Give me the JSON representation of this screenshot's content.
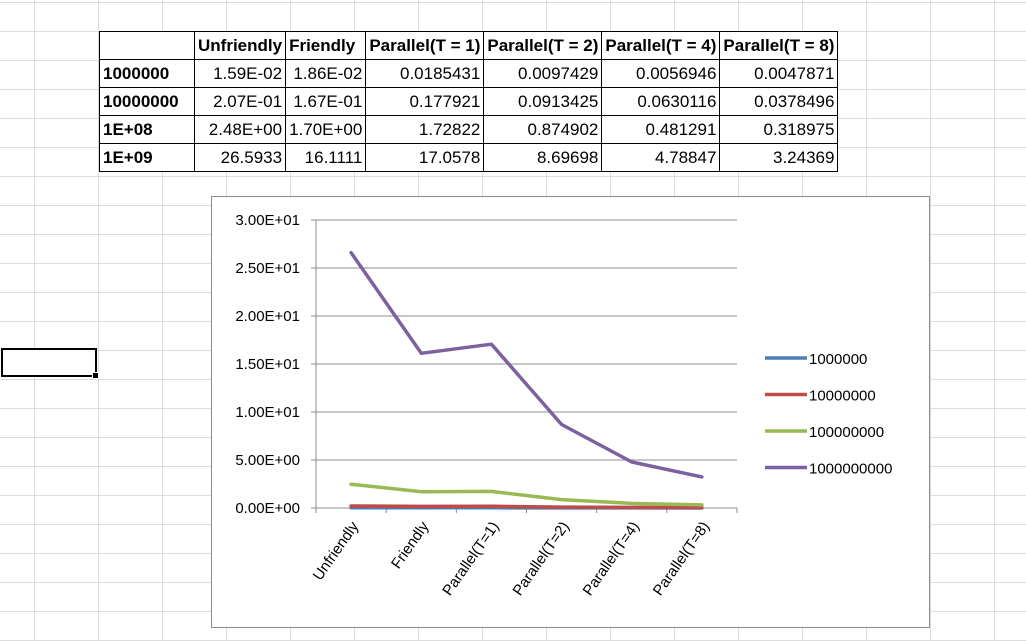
{
  "table": {
    "headers": [
      "",
      "Unfriendly",
      "Friendly",
      "Parallel(T = 1)",
      "Parallel(T = 2)",
      "Parallel(T = 4)",
      "Parallel(T = 8)"
    ],
    "rows": [
      {
        "label": "1000000",
        "cells": [
          "1.59E-02",
          "1.86E-02",
          "0.0185431",
          "0.0097429",
          "0.0056946",
          "0.0047871"
        ]
      },
      {
        "label": "10000000",
        "cells": [
          "2.07E-01",
          "1.67E-01",
          "0.177921",
          "0.0913425",
          "0.0630116",
          "0.0378496"
        ]
      },
      {
        "label": "1E+08",
        "cells": [
          "2.48E+00",
          "1.70E+00",
          "1.72822",
          "0.874902",
          "0.481291",
          "0.318975"
        ]
      },
      {
        "label": "1E+09",
        "cells": [
          "26.5933",
          "16.1111",
          "17.0578",
          "8.69698",
          "4.78847",
          "3.24369"
        ]
      }
    ]
  },
  "chart_data": {
    "type": "line",
    "categories": [
      "Unfriendly",
      "Friendly",
      "Parallel(T=1)",
      "Parallel(T=2)",
      "Parallel(T=4)",
      "Parallel(T=8)"
    ],
    "series": [
      {
        "name": "1000000",
        "color": "#4a7ebb",
        "values": [
          0.0159,
          0.0186,
          0.0185431,
          0.0097429,
          0.0056946,
          0.0047871
        ]
      },
      {
        "name": "10000000",
        "color": "#be4b48",
        "values": [
          0.207,
          0.167,
          0.177921,
          0.0913425,
          0.0630116,
          0.0378496
        ]
      },
      {
        "name": "100000000",
        "color": "#98b954",
        "values": [
          2.48,
          1.7,
          1.72822,
          0.874902,
          0.481291,
          0.318975
        ]
      },
      {
        "name": "1000000000",
        "color": "#7d60a0",
        "values": [
          26.5933,
          16.1111,
          17.0578,
          8.69698,
          4.78847,
          3.24369
        ]
      }
    ],
    "yticks": [
      "0.00E+00",
      "5.00E+00",
      "1.00E+01",
      "1.50E+01",
      "2.00E+01",
      "2.50E+01",
      "3.00E+01"
    ],
    "ylim": [
      0,
      30
    ],
    "title": "",
    "xlabel": "",
    "ylabel": "",
    "grid": "horizontal",
    "legend": "right"
  }
}
